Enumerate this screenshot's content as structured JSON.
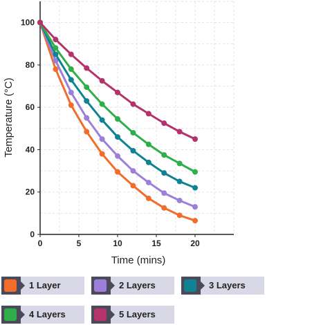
{
  "chart_data": {
    "type": "line",
    "title": "",
    "xlabel": "Time (mins)",
    "ylabel": "Temperature (°C)",
    "xlim": [
      0,
      25
    ],
    "ylim": [
      0,
      110
    ],
    "x_ticks": [
      0,
      5,
      10,
      15,
      20
    ],
    "y_ticks": [
      0,
      20,
      40,
      60,
      80,
      100
    ],
    "grid": true,
    "legend_position": "bottom",
    "x": [
      0,
      2,
      4,
      6,
      8,
      10,
      12,
      14,
      16,
      18,
      20
    ],
    "series": [
      {
        "name": "1 Layer",
        "color": "#f26c2b",
        "values": [
          100,
          78,
          61,
          48.5,
          38,
          29.5,
          23,
          17,
          12.5,
          9,
          6.5
        ]
      },
      {
        "name": "2 Layers",
        "color": "#9b7fd9",
        "values": [
          100,
          82,
          67,
          55,
          45,
          37,
          30,
          24.5,
          19.5,
          16,
          13
        ]
      },
      {
        "name": "3 Layers",
        "color": "#0f8393",
        "values": [
          100,
          85,
          73,
          63,
          54,
          46,
          39.5,
          34,
          29,
          25,
          22
        ]
      },
      {
        "name": "4 Layers",
        "color": "#2fae4a",
        "values": [
          100,
          88,
          78,
          69.5,
          61.5,
          54.5,
          48,
          42.5,
          37.5,
          33.5,
          29.5
        ]
      },
      {
        "name": "5 Layers",
        "color": "#b5336b",
        "values": [
          100,
          92,
          85,
          78.5,
          72.5,
          67,
          61.5,
          57,
          52.5,
          48.5,
          45
        ]
      }
    ]
  }
}
